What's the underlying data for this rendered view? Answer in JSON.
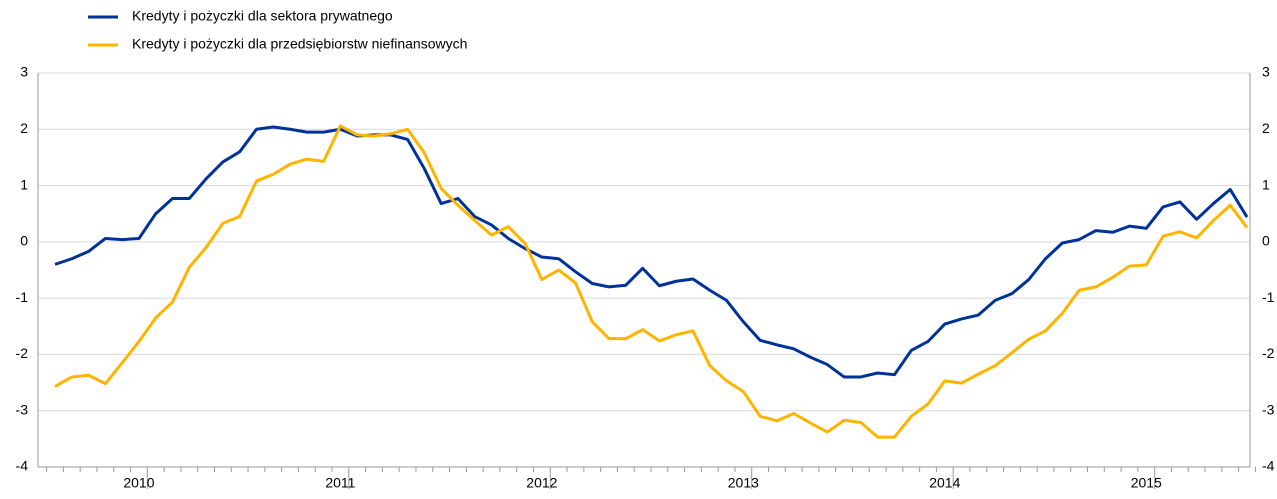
{
  "chart_data": {
    "type": "line",
    "categories": [
      null,
      null,
      null,
      null,
      null,
      "2010",
      null,
      null,
      null,
      null,
      null,
      null,
      null,
      null,
      null,
      null,
      null,
      "2011",
      null,
      null,
      null,
      null,
      null,
      null,
      null,
      null,
      null,
      null,
      null,
      "2012",
      null,
      null,
      null,
      null,
      null,
      null,
      null,
      null,
      null,
      null,
      null,
      "2013",
      null,
      null,
      null,
      null,
      null,
      null,
      null,
      null,
      null,
      null,
      null,
      "2014",
      null,
      null,
      null,
      null,
      null,
      null,
      null,
      null,
      null,
      null,
      null,
      "2015",
      null,
      null,
      null,
      null,
      null,
      null
    ],
    "series": [
      {
        "name": "Kredyty i pożyczki dla sektora prywatnego",
        "color": "#003299",
        "values": [
          -0.4,
          -0.3,
          -0.17,
          0.06,
          0.04,
          0.06,
          0.5,
          0.77,
          0.77,
          1.12,
          1.42,
          1.6,
          2.0,
          2.04,
          2.0,
          1.95,
          1.95,
          2.0,
          1.88,
          1.9,
          1.9,
          1.82,
          1.3,
          0.68,
          0.77,
          0.45,
          0.3,
          0.06,
          -0.12,
          -0.27,
          -0.3,
          -0.53,
          -0.74,
          -0.8,
          -0.77,
          -0.47,
          -0.78,
          -0.7,
          -0.66,
          -0.86,
          -1.04,
          -1.42,
          -1.75,
          -1.83,
          -1.9,
          -2.05,
          -2.18,
          -2.4,
          -2.4,
          -2.33,
          -2.36,
          -1.93,
          -1.77,
          -1.46,
          -1.37,
          -1.3,
          -1.04,
          -0.92,
          -0.67,
          -0.3,
          -0.02,
          0.04,
          0.2,
          0.17,
          0.28,
          0.24,
          0.62,
          0.71,
          0.4,
          0.68,
          0.93,
          0.44
        ]
      },
      {
        "name": "Kredyty i pożyczki dla przedsiębiorstw niefinansowych",
        "color": "#ffb400",
        "values": [
          -2.57,
          -2.4,
          -2.37,
          -2.52,
          -2.15,
          -1.77,
          -1.35,
          -1.07,
          -0.45,
          -0.1,
          0.33,
          0.45,
          1.08,
          1.2,
          1.38,
          1.47,
          1.43,
          2.06,
          1.9,
          1.88,
          1.92,
          2.0,
          1.58,
          0.95,
          0.65,
          0.38,
          0.12,
          0.27,
          -0.03,
          -0.67,
          -0.5,
          -0.73,
          -1.42,
          -1.72,
          -1.72,
          -1.56,
          -1.76,
          -1.65,
          -1.58,
          -2.2,
          -2.47,
          -2.66,
          -3.1,
          -3.18,
          -3.05,
          -3.22,
          -3.38,
          -3.17,
          -3.21,
          -3.47,
          -3.47,
          -3.1,
          -2.88,
          -2.47,
          -2.51,
          -2.35,
          -2.2,
          -1.97,
          -1.73,
          -1.58,
          -1.27,
          -0.86,
          -0.8,
          -0.63,
          -0.43,
          -0.41,
          0.1,
          0.18,
          0.07,
          0.38,
          0.65,
          0.25
        ]
      }
    ],
    "ylim": [
      -4,
      3
    ],
    "yticks": [
      -4,
      -3,
      -2,
      -1,
      0,
      1,
      2,
      3
    ],
    "grid": true
  }
}
